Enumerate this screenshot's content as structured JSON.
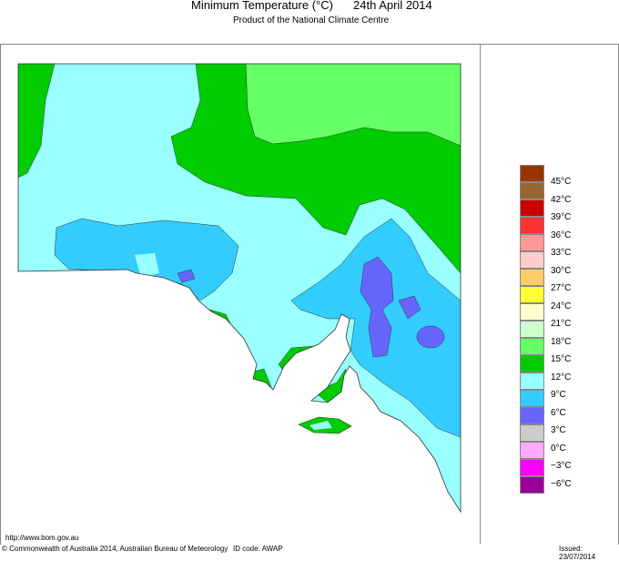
{
  "header": {
    "title": "Minimum Temperature (°C)",
    "date": "24th April 2014",
    "subtitle": "Product of the National Climate Centre"
  },
  "legend": {
    "colors": [
      "#993300",
      "#996633",
      "#cc0000",
      "#ff3333",
      "#ff9999",
      "#ffcccc",
      "#ffcc66",
      "#ffff33",
      "#ffffcc",
      "#ccffcc",
      "#66ff66",
      "#00cc00",
      "#99ffff",
      "#33ccff",
      "#6666ff",
      "#cccccc",
      "#ffaaff",
      "#ff00ff",
      "#990099"
    ],
    "labels": [
      "45°C",
      "42°C",
      "39°C",
      "36°C",
      "33°C",
      "30°C",
      "27°C",
      "24°C",
      "21°C",
      "18°C",
      "15°C",
      "12°C",
      "9°C",
      "6°C",
      "3°C",
      "0°C",
      "−3°C",
      "−6°C"
    ]
  },
  "map": {
    "sea": "#ffffff",
    "zone_colors": {
      "9-12": "#99ffff",
      "12-15": "#00cc00",
      "15-18": "#66ff66",
      "6-9": "#33ccff",
      "3-6": "#6666ff"
    }
  },
  "footer": {
    "url": "http://www.bom.gov.au",
    "copyright": "© Commonwealth of Australia 2014, Australian Bureau of Meteorology",
    "id_code": "ID code: AWAP",
    "issued": "Issued: 23/07/2014"
  }
}
